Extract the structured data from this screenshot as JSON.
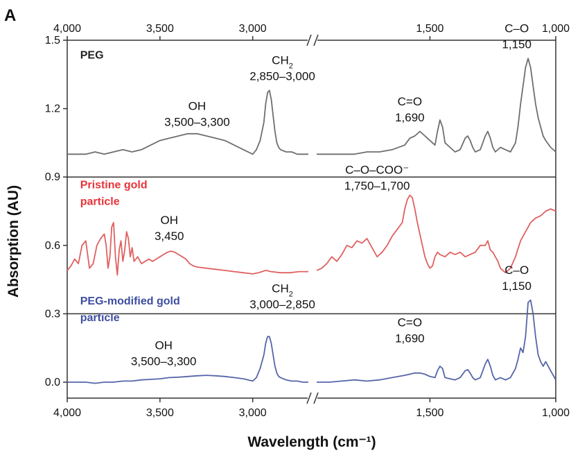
{
  "chart_data": {
    "type": "line",
    "panel_letter": "A",
    "xlabel": "Wavelength (cm⁻¹)",
    "ylabel": "Absorption (AU)",
    "xlim": [
      4000,
      1000
    ],
    "x_axis_break": {
      "left_end": 2700,
      "right_start": 1950
    },
    "x_ticks": [
      4000,
      3500,
      3000,
      1500,
      1000
    ],
    "x_tick_labels": [
      "4,000",
      "3,500",
      "3,000",
      "1,500",
      "1,000"
    ],
    "ylim": [
      -0.07,
      1.5
    ],
    "y_ticks": [
      0.0,
      0.3,
      0.6,
      0.9,
      1.2,
      1.5
    ],
    "y_tick_labels": [
      "0.0",
      "0.3",
      "0.6",
      "0.9",
      "1.2",
      "1.5"
    ],
    "panel_dividers": [
      0.9,
      0.3
    ],
    "series": [
      {
        "name": "PEG",
        "color": "#6e6e6e",
        "label_color": "#222222",
        "x": [
          4000,
          3950,
          3900,
          3850,
          3800,
          3750,
          3700,
          3650,
          3600,
          3550,
          3500,
          3450,
          3400,
          3350,
          3300,
          3250,
          3200,
          3150,
          3100,
          3050,
          3000,
          2980,
          2960,
          2940,
          2930,
          2920,
          2910,
          2900,
          2890,
          2880,
          2870,
          2860,
          2850,
          2820,
          2790,
          2760,
          2730,
          2700,
          1950,
          1900,
          1850,
          1800,
          1750,
          1700,
          1650,
          1600,
          1580,
          1560,
          1540,
          1520,
          1500,
          1480,
          1470,
          1460,
          1450,
          1440,
          1420,
          1400,
          1380,
          1360,
          1350,
          1340,
          1330,
          1320,
          1300,
          1280,
          1270,
          1260,
          1250,
          1240,
          1220,
          1200,
          1180,
          1160,
          1150,
          1140,
          1130,
          1120,
          1110,
          1100,
          1090,
          1080,
          1070,
          1060,
          1050,
          1040,
          1020,
          1000
        ],
        "y": [
          1.0,
          1.0,
          1.0,
          1.01,
          1.0,
          1.01,
          1.02,
          1.01,
          1.02,
          1.04,
          1.06,
          1.07,
          1.08,
          1.09,
          1.09,
          1.08,
          1.07,
          1.06,
          1.04,
          1.02,
          1.0,
          1.02,
          1.06,
          1.14,
          1.22,
          1.27,
          1.28,
          1.24,
          1.17,
          1.1,
          1.05,
          1.03,
          1.02,
          1.01,
          1.01,
          1.0,
          1.0,
          1.0,
          1.0,
          1.0,
          1.0,
          1.0,
          1.01,
          1.01,
          1.02,
          1.04,
          1.07,
          1.08,
          1.1,
          1.08,
          1.06,
          1.04,
          1.1,
          1.15,
          1.12,
          1.05,
          1.03,
          1.01,
          1.02,
          1.07,
          1.08,
          1.06,
          1.03,
          1.01,
          1.02,
          1.08,
          1.1,
          1.07,
          1.03,
          1.01,
          1.03,
          1.02,
          1.01,
          1.05,
          1.12,
          1.22,
          1.3,
          1.38,
          1.42,
          1.38,
          1.3,
          1.22,
          1.16,
          1.12,
          1.08,
          1.06,
          1.03,
          1.01
        ]
      },
      {
        "name": "Pristine gold particle",
        "color": "#e06060",
        "label_color": "#e8343a",
        "x": [
          4000,
          3980,
          3960,
          3940,
          3920,
          3900,
          3880,
          3860,
          3840,
          3820,
          3800,
          3790,
          3780,
          3770,
          3760,
          3750,
          3740,
          3730,
          3720,
          3710,
          3700,
          3690,
          3680,
          3670,
          3660,
          3650,
          3640,
          3620,
          3600,
          3580,
          3560,
          3540,
          3520,
          3500,
          3480,
          3460,
          3440,
          3420,
          3400,
          3380,
          3360,
          3340,
          3320,
          3300,
          3250,
          3200,
          3150,
          3100,
          3050,
          3000,
          2970,
          2950,
          2930,
          2900,
          2850,
          2800,
          2750,
          2700,
          1950,
          1930,
          1910,
          1890,
          1870,
          1850,
          1830,
          1810,
          1790,
          1770,
          1750,
          1730,
          1710,
          1690,
          1670,
          1650,
          1630,
          1610,
          1600,
          1590,
          1580,
          1570,
          1560,
          1550,
          1540,
          1530,
          1520,
          1510,
          1500,
          1490,
          1480,
          1470,
          1460,
          1440,
          1420,
          1400,
          1380,
          1360,
          1340,
          1320,
          1300,
          1280,
          1270,
          1260,
          1250,
          1240,
          1230,
          1220,
          1200,
          1180,
          1160,
          1140,
          1120,
          1100,
          1080,
          1060,
          1040,
          1020,
          1000
        ],
        "y": [
          0.49,
          0.51,
          0.54,
          0.52,
          0.6,
          0.62,
          0.5,
          0.52,
          0.6,
          0.63,
          0.65,
          0.6,
          0.5,
          0.55,
          0.68,
          0.7,
          0.55,
          0.47,
          0.58,
          0.62,
          0.53,
          0.58,
          0.66,
          0.63,
          0.55,
          0.59,
          0.53,
          0.55,
          0.52,
          0.53,
          0.54,
          0.53,
          0.54,
          0.55,
          0.56,
          0.57,
          0.575,
          0.57,
          0.56,
          0.55,
          0.54,
          0.52,
          0.51,
          0.505,
          0.5,
          0.495,
          0.49,
          0.485,
          0.48,
          0.475,
          0.48,
          0.485,
          0.49,
          0.485,
          0.48,
          0.48,
          0.485,
          0.485,
          0.49,
          0.5,
          0.52,
          0.55,
          0.53,
          0.56,
          0.6,
          0.59,
          0.62,
          0.61,
          0.63,
          0.59,
          0.55,
          0.57,
          0.6,
          0.64,
          0.67,
          0.7,
          0.76,
          0.8,
          0.82,
          0.81,
          0.76,
          0.7,
          0.65,
          0.6,
          0.55,
          0.52,
          0.5,
          0.51,
          0.55,
          0.57,
          0.56,
          0.55,
          0.57,
          0.56,
          0.57,
          0.55,
          0.56,
          0.57,
          0.6,
          0.6,
          0.62,
          0.58,
          0.57,
          0.55,
          0.53,
          0.5,
          0.48,
          0.5,
          0.55,
          0.62,
          0.66,
          0.7,
          0.72,
          0.73,
          0.75,
          0.76,
          0.75
        ]
      },
      {
        "name": "PEG-modified gold particle",
        "color": "#5565a8",
        "label_color": "#3d4ea0",
        "x": [
          4000,
          3950,
          3900,
          3850,
          3800,
          3750,
          3700,
          3650,
          3600,
          3550,
          3500,
          3450,
          3400,
          3350,
          3300,
          3250,
          3200,
          3150,
          3100,
          3050,
          3000,
          2980,
          2960,
          2940,
          2930,
          2920,
          2910,
          2900,
          2890,
          2880,
          2870,
          2860,
          2850,
          2820,
          2790,
          2760,
          2730,
          2700,
          1950,
          1900,
          1850,
          1800,
          1750,
          1700,
          1650,
          1600,
          1580,
          1560,
          1540,
          1520,
          1500,
          1480,
          1470,
          1460,
          1450,
          1440,
          1420,
          1400,
          1380,
          1360,
          1350,
          1340,
          1330,
          1320,
          1300,
          1280,
          1270,
          1260,
          1250,
          1240,
          1220,
          1200,
          1180,
          1160,
          1150,
          1140,
          1130,
          1120,
          1110,
          1100,
          1090,
          1080,
          1070,
          1060,
          1050,
          1040,
          1020,
          1000
        ],
        "y": [
          0.0,
          0.0,
          0.0,
          -0.005,
          0.0,
          0.0,
          0.005,
          0.005,
          0.01,
          0.012,
          0.015,
          0.02,
          0.022,
          0.025,
          0.028,
          0.03,
          0.028,
          0.025,
          0.02,
          0.015,
          0.005,
          0.02,
          0.06,
          0.12,
          0.17,
          0.2,
          0.2,
          0.17,
          0.12,
          0.07,
          0.04,
          0.025,
          0.02,
          0.01,
          0.005,
          0.005,
          0.0,
          0.0,
          0.0,
          0.0,
          0.005,
          0.01,
          0.005,
          0.01,
          0.02,
          0.03,
          0.035,
          0.04,
          0.04,
          0.035,
          0.025,
          0.02,
          0.05,
          0.07,
          0.06,
          0.02,
          0.015,
          0.01,
          0.02,
          0.05,
          0.055,
          0.04,
          0.02,
          0.01,
          0.02,
          0.08,
          0.1,
          0.07,
          0.03,
          0.01,
          0.02,
          0.01,
          0.02,
          0.06,
          0.1,
          0.15,
          0.13,
          0.2,
          0.35,
          0.36,
          0.3,
          0.2,
          0.12,
          0.09,
          0.07,
          0.09,
          0.05,
          0.01
        ]
      }
    ],
    "annotations": [
      {
        "series": "PEG",
        "lines": [
          "OH",
          "3,500–3,300"
        ],
        "x": 3300,
        "y": 1.1
      },
      {
        "series": "PEG",
        "lines": [
          "CH",
          "2,850–3,000"
        ],
        "sub": "2",
        "x": 2840,
        "y": 1.3
      },
      {
        "series": "PEG",
        "lines": [
          "C=O",
          "1,690"
        ],
        "x": 1580,
        "y": 1.12
      },
      {
        "series": "PEG",
        "lines": [
          "C–O",
          "1,150"
        ],
        "x": 1155,
        "y": 1.44
      },
      {
        "series": "Pristine gold particle",
        "lines": [
          "OH",
          "3,450"
        ],
        "x": 3450,
        "y": 0.6
      },
      {
        "series": "Pristine gold particle",
        "lines": [
          "C–O–COO⁻",
          "1,750–1,700"
        ],
        "x": 1710,
        "y": 0.82
      },
      {
        "series": "PEG-modified gold particle",
        "lines": [
          "OH",
          "3,500–3,300"
        ],
        "x": 3480,
        "y": 0.05
      },
      {
        "series": "PEG-modified gold particle",
        "lines": [
          "CH",
          "3,000–2,850"
        ],
        "sub": "2",
        "x": 2840,
        "y": 0.3
      },
      {
        "series": "PEG-modified gold particle",
        "lines": [
          "C=O",
          "1,690"
        ],
        "x": 1580,
        "y": 0.15
      },
      {
        "series": "PEG-modified gold particle",
        "lines": [
          "C–O",
          "1,150"
        ],
        "x": 1155,
        "y": 0.38
      }
    ],
    "series_label_positions": [
      {
        "series": "PEG",
        "lines": [
          "PEG"
        ],
        "x": 3930,
        "y": 1.42
      },
      {
        "series": "Pristine gold particle",
        "lines": [
          "Pristine gold",
          "particle"
        ],
        "x": 3930,
        "y": 0.85
      },
      {
        "series": "PEG-modified gold particle",
        "lines": [
          "PEG-modified gold",
          "particle"
        ],
        "x": 3930,
        "y": 0.34
      }
    ]
  }
}
